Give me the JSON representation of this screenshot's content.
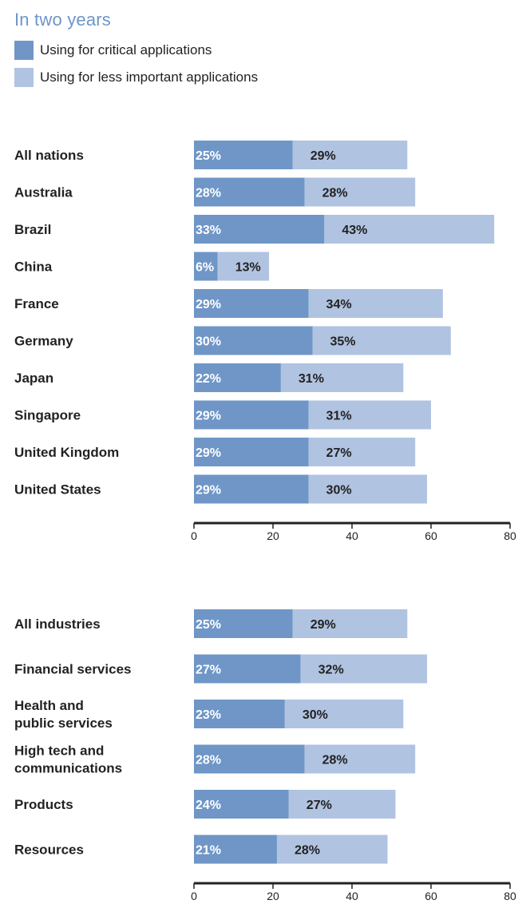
{
  "colors": {
    "critical": "#6f96c7",
    "less": "#b0c3e1",
    "title": "#6e96c8",
    "axis": "#222222"
  },
  "title": "In two years",
  "legend": [
    {
      "label": "Using for critical applications",
      "color": "#6f96c7"
    },
    {
      "label": "Using for less important applications",
      "color": "#b0c3e1"
    }
  ],
  "chart_data": [
    {
      "type": "bar",
      "orientation": "horizontal",
      "stacked": true,
      "categories": [
        "All nations",
        "Australia",
        "Brazil",
        "China",
        "France",
        "Germany",
        "Japan",
        "Singapore",
        "United Kingdom",
        "United States"
      ],
      "series": [
        {
          "name": "Using for critical applications",
          "values": [
            25,
            28,
            33,
            6,
            29,
            30,
            22,
            29,
            29,
            29
          ],
          "labels": [
            "25%",
            "28%",
            "33%",
            "6%",
            "29%",
            "30%",
            "22%",
            "29%",
            "29%",
            "29%"
          ]
        },
        {
          "name": "Using for less important applications",
          "values": [
            29,
            28,
            43,
            13,
            34,
            35,
            31,
            31,
            27,
            30
          ],
          "labels": [
            "29%",
            "28%",
            "43%",
            "13%",
            "34%",
            "35%",
            "31%",
            "31%",
            "27%",
            "30%"
          ]
        }
      ],
      "xlim": [
        0,
        80
      ],
      "ticks": [
        "0",
        "20",
        "40",
        "60",
        "80"
      ],
      "grid": false
    },
    {
      "type": "bar",
      "orientation": "horizontal",
      "stacked": true,
      "categories": [
        [
          "All industries"
        ],
        [
          "Financial services"
        ],
        [
          "Health and",
          "public services"
        ],
        [
          "High tech and",
          "communications"
        ],
        [
          "Products"
        ],
        [
          "Resources"
        ]
      ],
      "series": [
        {
          "name": "Using for critical applications",
          "values": [
            25,
            27,
            23,
            28,
            24,
            21
          ],
          "labels": [
            "25%",
            "27%",
            "23%",
            "28%",
            "24%",
            "21%"
          ]
        },
        {
          "name": "Using for less important applications",
          "values": [
            29,
            32,
            30,
            28,
            27,
            28
          ],
          "labels": [
            "29%",
            "32%",
            "30%",
            "28%",
            "27%",
            "28%"
          ]
        }
      ],
      "xlim": [
        0,
        80
      ],
      "ticks": [
        "0",
        "20",
        "40",
        "60",
        "80"
      ],
      "grid": false
    }
  ]
}
